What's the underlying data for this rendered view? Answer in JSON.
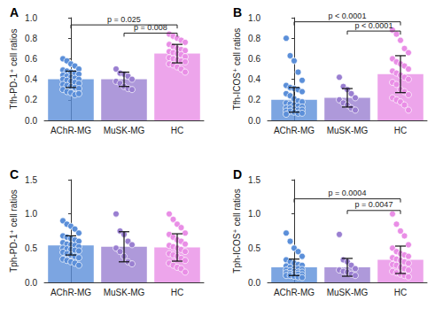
{
  "chart_data": [
    {
      "type": "bar",
      "title": "A",
      "y_label": "Tfh-PD-1⁺ cell ratios",
      "categories": [
        "AChR-MG",
        "MuSK-MG",
        "HC"
      ],
      "values": [
        0.4,
        0.4,
        0.65
      ],
      "error": [
        0.08,
        0.07,
        0.09
      ],
      "colors": [
        "#5b8fd9",
        "#9a7fd1",
        "#e98ee6"
      ],
      "points": [
        [
          0.6,
          0.58,
          0.55,
          0.53,
          0.5,
          0.49,
          0.48,
          0.47,
          0.46,
          0.45,
          0.44,
          0.43,
          0.42,
          0.41,
          0.4,
          0.4,
          0.39,
          0.38,
          0.37,
          0.36,
          0.35,
          0.34,
          0.33,
          0.32,
          0.31,
          0.3,
          0.28,
          0.27,
          0.25,
          0.26
        ],
        [
          0.5,
          0.46,
          0.45,
          0.43,
          0.4,
          0.38,
          0.36,
          0.33,
          0.31,
          0.3
        ],
        [
          0.84,
          0.82,
          0.8,
          0.78,
          0.76,
          0.74,
          0.72,
          0.7,
          0.69,
          0.68,
          0.67,
          0.66,
          0.65,
          0.64,
          0.62,
          0.61,
          0.6,
          0.59,
          0.58,
          0.57,
          0.55,
          0.54,
          0.52,
          0.5,
          0.47
        ]
      ],
      "ylim": [
        0,
        1.0
      ],
      "yticks": [
        {
          "value": 0,
          "label": "0.0"
        },
        0.2,
        0.4,
        0.6,
        0.8,
        {
          "value": 1.0,
          "label": "1.0"
        }
      ],
      "annotations": [
        {
          "text": "p = 0.025",
          "from": "AChR-MG",
          "to": "HC",
          "y": 0.93
        },
        {
          "text": "p = 0.008",
          "from": "MuSK-MG",
          "to": "HC",
          "y": 0.85
        }
      ]
    },
    {
      "type": "bar",
      "title": "B",
      "y_label": "Tfh-ICOS⁺ cell ratios",
      "categories": [
        "AChR-MG",
        "MuSK-MG",
        "HC"
      ],
      "values": [
        0.2,
        0.22,
        0.45
      ],
      "error": [
        0.12,
        0.09,
        0.18
      ],
      "colors": [
        "#5b8fd9",
        "#9a7fd1",
        "#e98ee6"
      ],
      "points": [
        [
          0.8,
          0.63,
          0.58,
          0.47,
          0.39,
          0.34,
          0.32,
          0.31,
          0.3,
          0.28,
          0.26,
          0.24,
          0.21,
          0.19,
          0.18,
          0.17,
          0.16,
          0.15,
          0.14,
          0.13,
          0.12,
          0.12,
          0.11,
          0.1,
          0.1,
          0.09,
          0.09,
          0.08,
          0.07,
          0.07,
          0.06
        ],
        [
          0.42,
          0.33,
          0.3,
          0.26,
          0.22,
          0.2,
          0.17,
          0.15,
          0.12,
          0.1
        ],
        [
          0.88,
          0.84,
          0.78,
          0.7,
          0.66,
          0.6,
          0.57,
          0.55,
          0.53,
          0.5,
          0.48,
          0.46,
          0.44,
          0.42,
          0.4,
          0.37,
          0.35,
          0.3,
          0.28,
          0.25,
          0.22,
          0.2,
          0.18,
          0.15,
          0.1
        ]
      ],
      "ylim": [
        0,
        1.0
      ],
      "yticks": [
        {
          "value": 0,
          "label": "0.0"
        },
        0.2,
        0.4,
        0.6,
        0.8,
        {
          "value": 1.0,
          "label": "1.0"
        }
      ],
      "annotations": [
        {
          "text": "p < 0.0001",
          "from": "AChR-MG",
          "to": "HC",
          "y": 0.96
        },
        {
          "text": "p < 0.0001",
          "from": "MuSK-MG",
          "to": "HC",
          "y": 0.87
        }
      ]
    },
    {
      "type": "bar",
      "title": "C",
      "y_label": "Tph-PD-1⁺ cell ratios",
      "categories": [
        "AChR-MG",
        "MuSK-MG",
        "HC"
      ],
      "values": [
        0.54,
        0.52,
        0.51
      ],
      "error": [
        0.14,
        0.22,
        0.2
      ],
      "colors": [
        "#5b8fd9",
        "#9a7fd1",
        "#e98ee6"
      ],
      "points": [
        [
          0.9,
          0.85,
          0.82,
          0.78,
          0.72,
          0.68,
          0.66,
          0.64,
          0.62,
          0.6,
          0.58,
          0.56,
          0.55,
          0.54,
          0.52,
          0.5,
          0.49,
          0.48,
          0.47,
          0.46,
          0.44,
          0.42,
          0.4,
          0.38,
          0.36,
          0.34,
          0.32,
          0.3,
          0.28,
          0.25
        ],
        [
          1.0,
          0.75,
          0.7,
          0.6,
          0.55,
          0.5,
          0.45,
          0.38,
          0.3,
          0.27
        ],
        [
          1.0,
          0.92,
          0.85,
          0.8,
          0.72,
          0.7,
          0.66,
          0.62,
          0.6,
          0.56,
          0.54,
          0.52,
          0.5,
          0.48,
          0.45,
          0.42,
          0.4,
          0.38,
          0.35,
          0.32,
          0.28,
          0.25,
          0.22,
          0.2,
          0.15
        ]
      ],
      "ylim": [
        0,
        1.5
      ],
      "yticks": [
        {
          "value": 0,
          "label": "0.0"
        },
        0.5,
        {
          "value": 1.0,
          "label": "1.0"
        },
        1.5
      ],
      "annotations": []
    },
    {
      "type": "bar",
      "title": "D",
      "y_label": "Tph-ICOS⁺ cell ratios",
      "categories": [
        "AChR-MG",
        "MuSK-MG",
        "HC"
      ],
      "values": [
        0.22,
        0.22,
        0.33
      ],
      "error": [
        0.12,
        0.13,
        0.2
      ],
      "colors": [
        "#5b8fd9",
        "#9a7fd1",
        "#e98ee6"
      ],
      "points": [
        [
          0.72,
          0.6,
          0.5,
          0.45,
          0.38,
          0.33,
          0.3,
          0.28,
          0.26,
          0.25,
          0.24,
          0.22,
          0.2,
          0.2,
          0.19,
          0.18,
          0.17,
          0.16,
          0.15,
          0.15,
          0.14,
          0.13,
          0.12,
          0.12,
          0.11,
          0.1,
          0.1,
          0.09,
          0.08,
          0.07
        ],
        [
          0.7,
          0.33,
          0.3,
          0.25,
          0.2,
          0.18,
          0.16,
          0.15,
          0.12,
          0.1
        ],
        [
          1.0,
          0.85,
          0.75,
          0.68,
          0.55,
          0.5,
          0.45,
          0.42,
          0.4,
          0.38,
          0.36,
          0.34,
          0.32,
          0.3,
          0.28,
          0.26,
          0.25,
          0.22,
          0.2,
          0.18,
          0.16,
          0.14,
          0.12,
          0.1,
          0.08
        ]
      ],
      "ylim": [
        0,
        1.5
      ],
      "yticks": [
        {
          "value": 0,
          "label": "0.0"
        },
        0.5,
        {
          "value": 1.0,
          "label": "1.0"
        },
        1.5
      ],
      "annotations": [
        {
          "text": "p = 0.0004",
          "from": "AChR-MG",
          "to": "HC",
          "y": 1.22
        },
        {
          "text": "p = 0.0047",
          "from": "MuSK-MG",
          "to": "HC",
          "y": 1.05
        }
      ]
    }
  ]
}
